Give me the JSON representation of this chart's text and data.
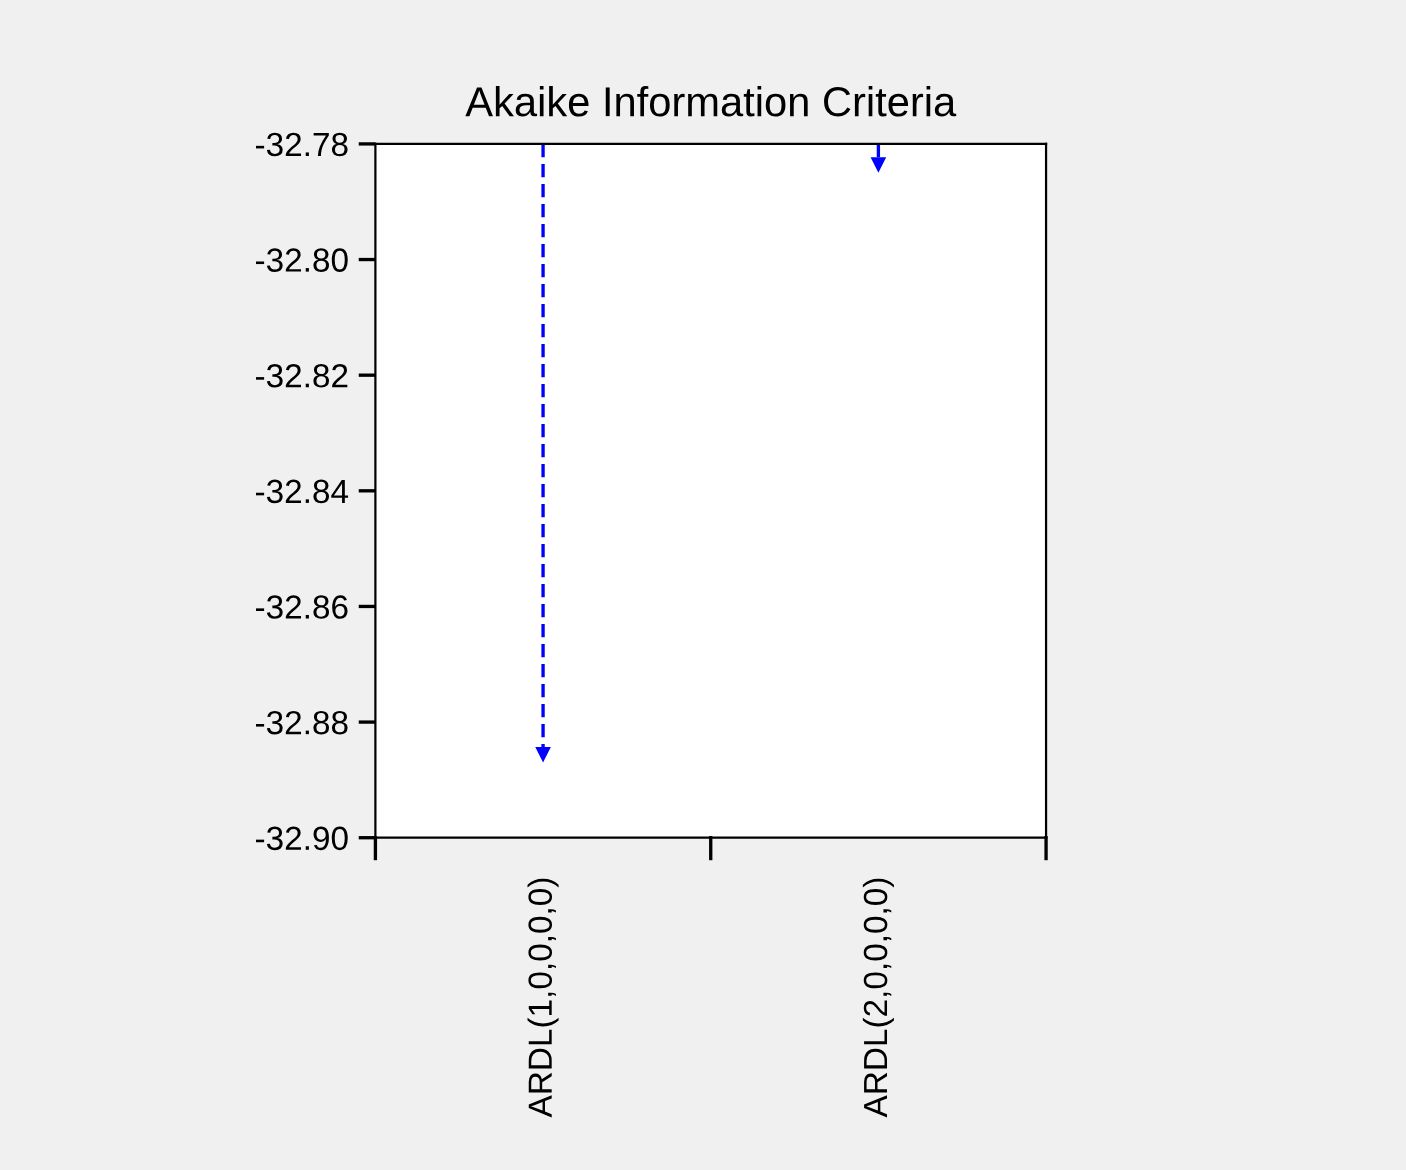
{
  "chart_data": {
    "type": "lollipop",
    "title": "Akaike Information Criteria",
    "categories": [
      "ARDL(1,0,0,0,0)",
      "ARDL(2,0,0,0,0)"
    ],
    "series": [
      {
        "color": "#0000ff",
        "values": [
          -32.8855,
          -32.7835
        ]
      }
    ],
    "ylim": [
      -32.9,
      -32.78
    ],
    "yticks": [
      {
        "value": -32.9,
        "label": "-32.90"
      },
      -32.88,
      -32.86,
      -32.84,
      -32.82,
      {
        "value": -32.8,
        "label": "-32.80"
      },
      -32.78
    ],
    "grid": false,
    "legend": false,
    "marker": "triangle",
    "line_style": "dashed"
  }
}
